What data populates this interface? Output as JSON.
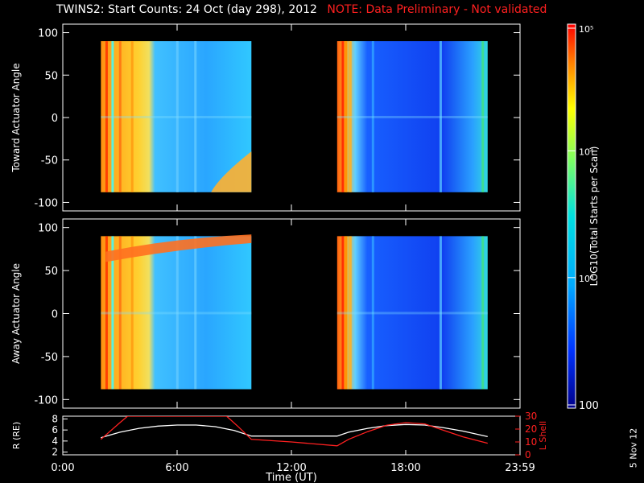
{
  "header": {
    "title": "TWINS2: Start Counts: 24 Oct (day 298), 2012",
    "note": "NOTE: Data Preliminary - Not validated"
  },
  "stamp": "5 Nov 12",
  "colorbar": {
    "label_html": "LOG10(Total Starts per Scan)",
    "tick_labels": [
      "10⁵",
      "10⁴",
      "10³",
      "100"
    ]
  },
  "colors": {
    "background": "#000000",
    "axis": "#ffffff",
    "note": "#ff2020",
    "r_line": "#ffffff",
    "lshell_line": "#ff2020"
  },
  "chart_data": [
    {
      "type": "heatmap",
      "ylabel": "Toward Actuator Angle",
      "x_range_hours": [
        0,
        24
      ],
      "ylim": [
        -110,
        110
      ],
      "y_ticks": [
        100,
        50,
        0,
        -50,
        -100
      ],
      "data_intervals_hours": [
        [
          2.0,
          9.9
        ],
        [
          14.4,
          22.3
        ]
      ],
      "y_extent": [
        -88,
        90
      ],
      "log_counts_range": [
        2,
        5
      ]
    },
    {
      "type": "heatmap",
      "ylabel": "Away Actuator Angle",
      "x_range_hours": [
        0,
        24
      ],
      "ylim": [
        -110,
        110
      ],
      "y_ticks": [
        100,
        50,
        0,
        -50,
        -100
      ],
      "data_intervals_hours": [
        [
          2.0,
          9.9
        ],
        [
          14.4,
          22.3
        ]
      ],
      "y_extent": [
        -88,
        90
      ],
      "log_counts_range": [
        2,
        5
      ]
    },
    {
      "type": "line",
      "xlabel": "Time (UT)",
      "x_tick_labels": [
        "0:00",
        "6:00",
        "12:00",
        "18:00",
        "23:59"
      ],
      "x_tick_hours": [
        0,
        6,
        12,
        18,
        24
      ],
      "left_axis": {
        "label": "R (RE)",
        "ylim": [
          1.5,
          8.5
        ],
        "ticks": [
          2,
          4,
          6,
          8
        ]
      },
      "right_axis": {
        "label": "L Shell",
        "ylim": [
          0,
          30
        ],
        "ticks": [
          0,
          10,
          20,
          30
        ]
      },
      "series": [
        {
          "name": "R (RE)",
          "axis": "left",
          "x": [
            2.0,
            3.0,
            4.0,
            5.0,
            6.0,
            7.0,
            8.0,
            9.0,
            9.9,
            11.0,
            12.0,
            13.0,
            14.4,
            15.0,
            16.0,
            17.0,
            18.0,
            19.0,
            20.0,
            21.0,
            22.3
          ],
          "y": [
            4.6,
            5.6,
            6.3,
            6.7,
            6.9,
            6.9,
            6.6,
            5.9,
            4.9,
            4.9,
            4.9,
            4.9,
            4.9,
            5.6,
            6.3,
            6.8,
            7.0,
            6.9,
            6.4,
            5.8,
            4.8
          ]
        },
        {
          "name": "L Shell",
          "axis": "right",
          "x": [
            2.0,
            3.0,
            3.4,
            8.6,
            9.2,
            9.9,
            12.0,
            14.4,
            15.0,
            16.0,
            17.0,
            18.0,
            19.0,
            20.0,
            21.0,
            22.3
          ],
          "y": [
            12,
            25,
            30,
            30,
            22,
            12,
            10,
            7,
            12,
            18,
            23,
            25,
            24,
            19,
            14,
            9
          ]
        }
      ]
    }
  ]
}
